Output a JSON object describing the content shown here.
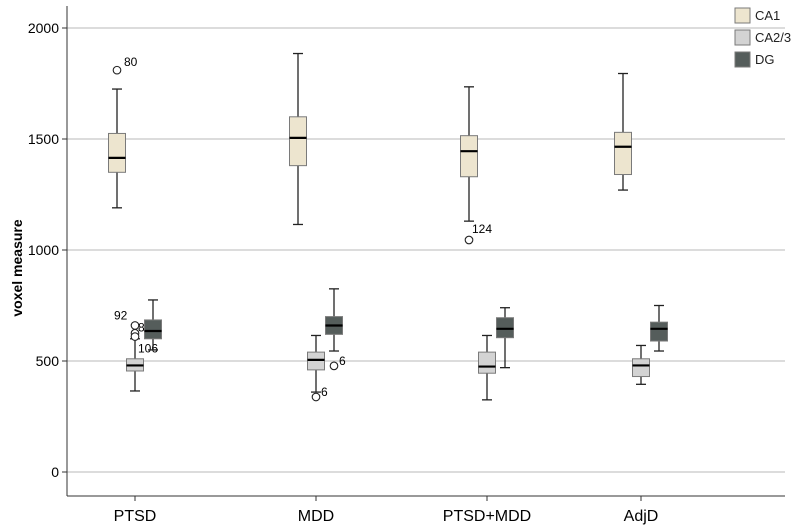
{
  "chart_data": {
    "type": "boxplot",
    "title": "",
    "xlabel": "",
    "ylabel": "voxel measure",
    "ylim": [
      -100,
      2100
    ],
    "yticks": [
      0,
      500,
      1000,
      1500,
      2000
    ],
    "grid": "horizontal",
    "legend_position": "top-right",
    "categories": [
      "PTSD",
      "MDD",
      "PTSD+MDD",
      "AdjD"
    ],
    "series": [
      {
        "name": "CA1",
        "color": "#ede5cf",
        "boxes": [
          {
            "whisker_low": 1190,
            "q1": 1350,
            "median": 1415,
            "q3": 1525,
            "whisker_high": 1725,
            "outliers": [
              {
                "value": 1810,
                "label": "80"
              }
            ]
          },
          {
            "whisker_low": 1115,
            "q1": 1380,
            "median": 1505,
            "q3": 1600,
            "whisker_high": 1885,
            "outliers": []
          },
          {
            "whisker_low": 1130,
            "q1": 1330,
            "median": 1445,
            "q3": 1515,
            "whisker_high": 1735,
            "outliers": [
              {
                "value": 1045,
                "label": "124"
              }
            ]
          },
          {
            "whisker_low": 1270,
            "q1": 1340,
            "median": 1465,
            "q3": 1530,
            "whisker_high": 1795,
            "outliers": []
          }
        ]
      },
      {
        "name": "CA2/3",
        "color": "#d3d3d3",
        "boxes": [
          {
            "whisker_low": 365,
            "q1": 455,
            "median": 480,
            "q3": 510,
            "whisker_high": 600,
            "outliers": [
              {
                "value": 660,
                "label": "92"
              },
              {
                "value": 625,
                "label": "80"
              },
              {
                "value": 610,
                "label": "106"
              }
            ]
          },
          {
            "whisker_low": 360,
            "q1": 460,
            "median": 505,
            "q3": 540,
            "whisker_high": 615,
            "outliers": [
              {
                "value": 338,
                "label": "6"
              }
            ]
          },
          {
            "whisker_low": 325,
            "q1": 445,
            "median": 475,
            "q3": 540,
            "whisker_high": 615,
            "outliers": []
          },
          {
            "whisker_low": 395,
            "q1": 430,
            "median": 480,
            "q3": 510,
            "whisker_high": 570,
            "outliers": []
          }
        ]
      },
      {
        "name": "DG",
        "color": "#555d5b",
        "boxes": [
          {
            "whisker_low": 550,
            "q1": 600,
            "median": 635,
            "q3": 685,
            "whisker_high": 775,
            "outliers": []
          },
          {
            "whisker_low": 545,
            "q1": 620,
            "median": 660,
            "q3": 700,
            "whisker_high": 825,
            "outliers": [
              {
                "value": 478,
                "label": "6"
              }
            ]
          },
          {
            "whisker_low": 470,
            "q1": 605,
            "median": 645,
            "q3": 695,
            "whisker_high": 740,
            "outliers": []
          },
          {
            "whisker_low": 545,
            "q1": 590,
            "median": 645,
            "q3": 675,
            "whisker_high": 750,
            "outliers": []
          }
        ]
      }
    ]
  }
}
